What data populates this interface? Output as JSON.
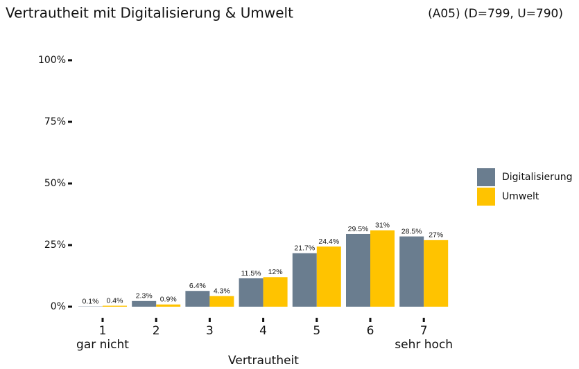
{
  "chart_data": {
    "type": "bar",
    "title": "Vertrautheit mit Digitalisierung & Umwelt",
    "subtitle": "(A05) (D=799, U=790)",
    "x_label": "Vertrautheit",
    "x_end_labels": [
      "gar nicht",
      "sehr hoch"
    ],
    "categories": [
      "1",
      "2",
      "3",
      "4",
      "5",
      "6",
      "7"
    ],
    "series": [
      {
        "name": "Digitalisierung",
        "color": "#6a7d8f",
        "values": [
          0.1,
          2.3,
          6.4,
          11.5,
          21.7,
          29.5,
          28.5
        ],
        "value_labels": [
          "0.1%",
          "2.3%",
          "6.4%",
          "11.5%",
          "21.7%",
          "29.5%",
          "28.5%"
        ]
      },
      {
        "name": "Umwelt",
        "color": "#ffc300",
        "values": [
          0.4,
          0.9,
          4.3,
          12,
          24.4,
          31,
          27
        ],
        "value_labels": [
          "0.4%",
          "0.9%",
          "4.3%",
          "12%",
          "24.4%",
          "31%",
          "27%"
        ]
      }
    ],
    "ylim": [
      0,
      100
    ],
    "yticks": [
      {
        "value": 0,
        "label": "0%"
      },
      {
        "value": 25,
        "label": "25%"
      },
      {
        "value": 50,
        "label": "50%"
      },
      {
        "value": 75,
        "label": "75%"
      },
      {
        "value": 100,
        "label": "100%"
      }
    ],
    "legend": "right"
  }
}
